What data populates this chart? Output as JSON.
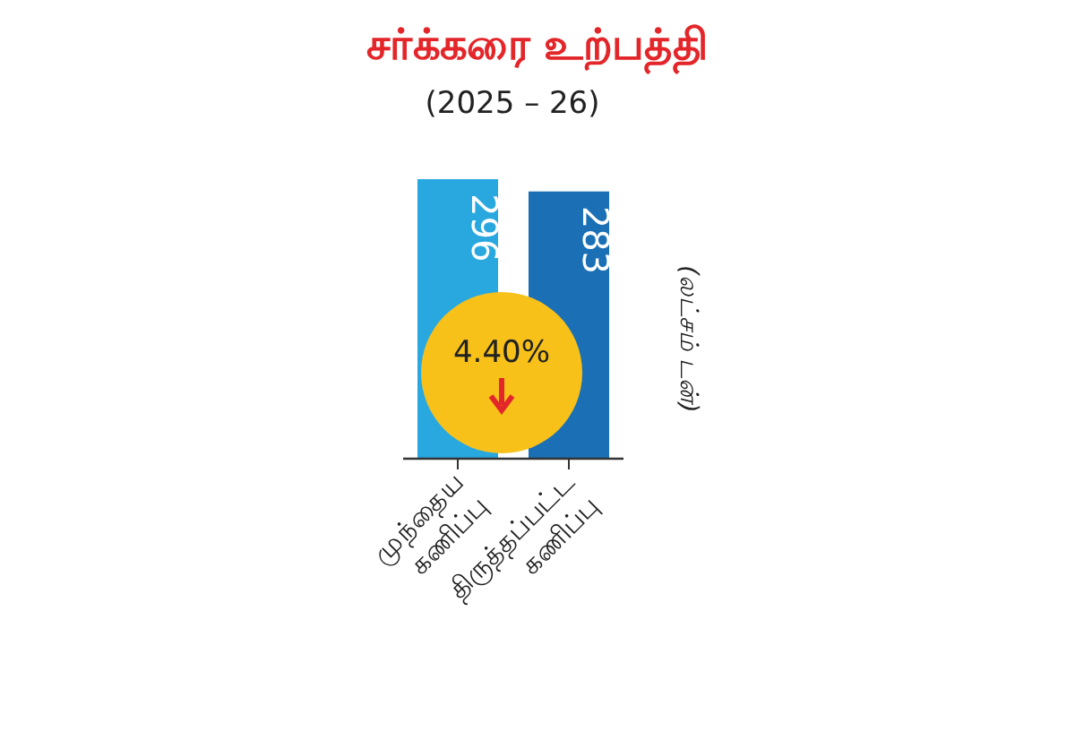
{
  "chart_data": {
    "type": "bar",
    "title": "சர்க்கரை உற்பத்தி",
    "subtitle": "(2025 – 26)",
    "ylabel": "(லட்சம் டன்)",
    "categories": [
      "முந்தைய கணிப்பு",
      "திருத்தப்பட்ட கணிப்பு"
    ],
    "values": [
      296,
      283
    ],
    "colors": [
      "#29a8e0",
      "#1a6fb5"
    ],
    "data_labels": true,
    "annotations": [
      "4.40%"
    ]
  }
}
